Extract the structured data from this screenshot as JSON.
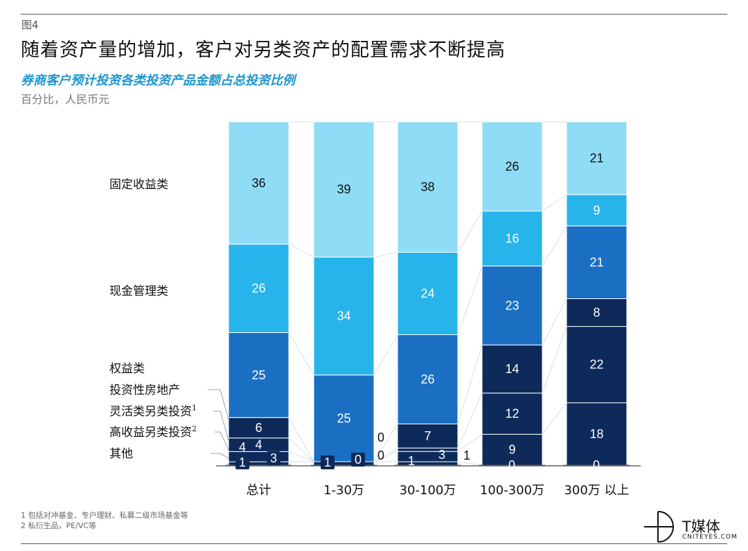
{
  "header": {
    "fig_label": "图4",
    "title": "随着资产量的增加，客户对另类资产的配置需求不断提高",
    "subtitle": "券商客户预计投资各类投资产品金额占总投资比例",
    "unit": "百分比，人民币元"
  },
  "footnotes": [
    "1 包括对冲基金、专户理财、私募二级市场基金等",
    "2 私衍生品，PE/VC等"
  ],
  "logo": {
    "text": "T媒体",
    "sub": "CNITEYES.COM"
  },
  "colors": {
    "fixed_income": "#8fdcf6",
    "cash": "#27b4ea",
    "equity": "#1a6fc3",
    "dark": "#0d2a5a",
    "lead": "#7a8da6"
  },
  "chart_data": {
    "type": "bar",
    "stacked": true,
    "categories": [
      "总计",
      "1-30万",
      "30-100万",
      "100-300万",
      "300万 以上"
    ],
    "series": [
      {
        "name": "其他",
        "values": [
          1,
          1,
          1,
          0,
          0
        ]
      },
      {
        "name": "高收益另类投资2",
        "values": [
          3,
          0,
          3,
          9,
          18
        ]
      },
      {
        "name": "灵活类另类投资1",
        "values": [
          4,
          0,
          1,
          12,
          22
        ]
      },
      {
        "name": "投资性房地产",
        "values": [
          6,
          0,
          7,
          14,
          8
        ]
      },
      {
        "name": "权益类",
        "values": [
          25,
          25,
          26,
          23,
          21
        ]
      },
      {
        "name": "现金管理类",
        "values": [
          26,
          34,
          24,
          16,
          9
        ]
      },
      {
        "name": "固定收益类",
        "values": [
          36,
          39,
          38,
          26,
          21
        ]
      }
    ],
    "legend_labels": [
      "固定收益类",
      "现金管理类",
      "权益类",
      "投资性房地产",
      "灵活类另类投资1",
      "高收益另类投资2",
      "其他"
    ],
    "ylim": [
      0,
      100
    ],
    "grid": false,
    "legend": "left"
  }
}
